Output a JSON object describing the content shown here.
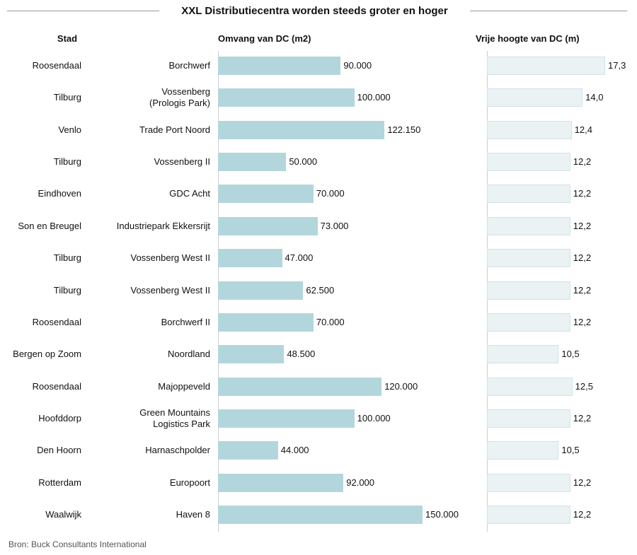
{
  "chart_data": {
    "type": "bar",
    "title": "XXL Distributiecentra worden steeds groter en hoger",
    "category_header": "Stad",
    "categories": [
      "Roosendaal",
      "Tilburg",
      "Venlo",
      "Tilburg",
      "Eindhoven",
      "Son en Breugel",
      "Tilburg",
      "Tilburg",
      "Roosendaal",
      "Bergen op Zoom",
      "Roosendaal",
      "Hoofddorp",
      "Den Hoorn",
      "Rotterdam",
      "Waalwijk"
    ],
    "names": [
      "Borchwerf",
      "Vossenberg\n(Prologis Park)",
      "Trade Port Noord",
      "Vossenberg II",
      "GDC Acht",
      "Industriepark Ekkersrijt",
      "Vossenberg West II",
      "Vossenberg West II",
      "Borchwerf II",
      "Noordland",
      "Majoppeveld",
      "Green Mountains\nLogistics Park",
      "Harnaschpolder",
      "Europoort",
      "Haven 8"
    ],
    "series": [
      {
        "name": "Omvang van DC (m2)",
        "color": "#b3d6dd",
        "values": [
          90000,
          100000,
          122150,
          50000,
          70000,
          73000,
          47000,
          62500,
          70000,
          48500,
          120000,
          100000,
          44000,
          92000,
          150000
        ],
        "value_labels": [
          "90.000",
          "100.000",
          "122.150",
          "50.000",
          "70.000",
          "73.000",
          "47.000",
          "62.500",
          "70.000",
          "48.500",
          "120.000",
          "100.000",
          "44.000",
          "92.000",
          "150.000"
        ]
      },
      {
        "name": "Vrije hoogte van DC (m)",
        "color": "#eaf2f4",
        "values": [
          17.3,
          14.0,
          12.4,
          12.2,
          12.2,
          12.2,
          12.2,
          12.2,
          12.2,
          10.5,
          12.5,
          12.2,
          10.5,
          12.2,
          12.2
        ],
        "value_labels": [
          "17,3",
          "14,0",
          "12,4",
          "12,2",
          "12,2",
          "12,2",
          "12,2",
          "12,2",
          "12,2",
          "10,5",
          "12,5",
          "12,2",
          "10,5",
          "12,2",
          "12,2"
        ]
      }
    ],
    "source": "Bron: Buck Consultants International"
  }
}
